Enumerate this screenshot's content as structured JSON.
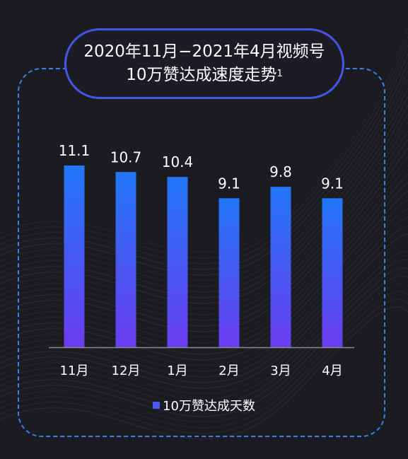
{
  "chart_data": {
    "type": "bar",
    "title_line1": "2020年11月−2021年4月视频号",
    "title_line2": "10万赞达成速度走势",
    "title_footnote": "1",
    "categories": [
      "11月",
      "12月",
      "1月",
      "2月",
      "3月",
      "4月"
    ],
    "series": [
      {
        "name": "10万赞达成天数",
        "values": [
          11.1,
          10.7,
          10.4,
          9.1,
          9.8,
          9.1
        ]
      }
    ],
    "value_labels": [
      "11.1",
      "10.7",
      "10.4",
      "9.1",
      "9.8",
      "9.1"
    ],
    "ylim": [
      0,
      11.1
    ],
    "grid": false,
    "legend": "bottom-center",
    "colors": {
      "bar_top": "#2277f6",
      "bar_bottom": "#6a3cf0",
      "accent": "#4655e6",
      "frame": "#3b82e6",
      "axis": "#8a8a8f"
    }
  }
}
